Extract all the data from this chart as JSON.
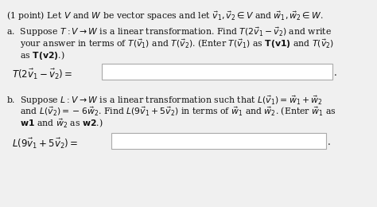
{
  "bg_color": "#f0f0f0",
  "text_color": "#111111",
  "box_color": "#ffffff",
  "box_border": "#aaaaaa",
  "title": "(1 point) Let $V$ and $W$ be vector spaces and let $\\vec{v}_1, \\vec{v}_2 \\in V$ and $\\vec{w}_1, \\vec{w}_2 \\in W$.",
  "a_line1": "a.  Suppose $T : V \\rightarrow W$ is a linear transformation. Find $T(2\\vec{v}_1 - \\vec{v}_2)$ and write",
  "a_line2": "     your answer in terms of $T(\\vec{v}_1)$ and $T(\\vec{v}_2)$. (Enter $T(\\vec{v}_1)$ as $\\mathbf{T(v1)}$ and $T(\\vec{v}_2)$",
  "a_line3": "     as $\\mathbf{T(v2)}$.)",
  "a_eq": "$T(2\\vec{v}_1 - \\vec{v}_2) =$",
  "b_line1": "b.  Suppose $L : V \\rightarrow W$ is a linear transformation such that $L(\\vec{v}_1) = \\vec{w}_1 + \\vec{w}_2$",
  "b_line2": "     and $L(\\vec{v}_2) = -6\\vec{w}_2$. Find $L(9\\vec{v}_1 + 5\\vec{v}_2)$ in terms of $\\vec{w}_1$ and $\\vec{w}_2$. (Enter $\\vec{w}_1$ as",
  "b_line3": "     $\\mathbf{w1}$ and $\\vec{w}_2$ as $\\mathbf{w2}$.)",
  "b_eq": "$L(9\\vec{v}_1 + 5\\vec{v}_2) =$",
  "fs": 7.8,
  "fs_eq": 8.5
}
